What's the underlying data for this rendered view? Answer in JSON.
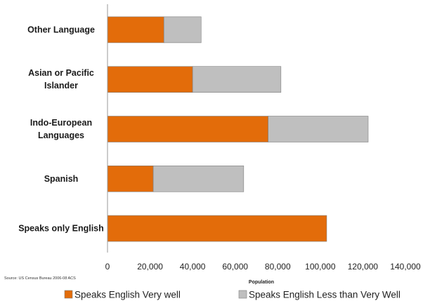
{
  "chart_data": {
    "type": "bar",
    "orientation": "horizontal",
    "stacked": true,
    "categories": [
      "Other Language",
      "Asian or Pacific Islander",
      "Indo-European Languages",
      "Spanish",
      "Speaks only English"
    ],
    "category_lines": [
      [
        "Other Language"
      ],
      [
        "Asian or Pacific",
        "Islander"
      ],
      [
        "Indo-European",
        "Languages"
      ],
      [
        "Spanish"
      ],
      [
        "Speaks only English"
      ]
    ],
    "series": [
      {
        "name": "Speaks English Very well",
        "color": "#e36c0a",
        "values": [
          26500,
          40000,
          75500,
          21500,
          103000
        ]
      },
      {
        "name": "Speaks English Less than Very Well",
        "color": "#bfbfbf",
        "values": [
          17500,
          41500,
          47000,
          42500,
          0
        ]
      }
    ],
    "xlabel": "Population",
    "xlim": [
      0,
      140000
    ],
    "xticks": [
      0,
      20000,
      40000,
      60000,
      80000,
      100000,
      120000,
      140000
    ],
    "xtick_labels": [
      "0",
      "20,000",
      "40,000",
      "60,000",
      "80,000",
      "100,000",
      "120,000",
      "140,000"
    ],
    "grid": false,
    "legend_position": "bottom",
    "source_note": "Source: US Census Bureau 2006-08 ACS"
  }
}
